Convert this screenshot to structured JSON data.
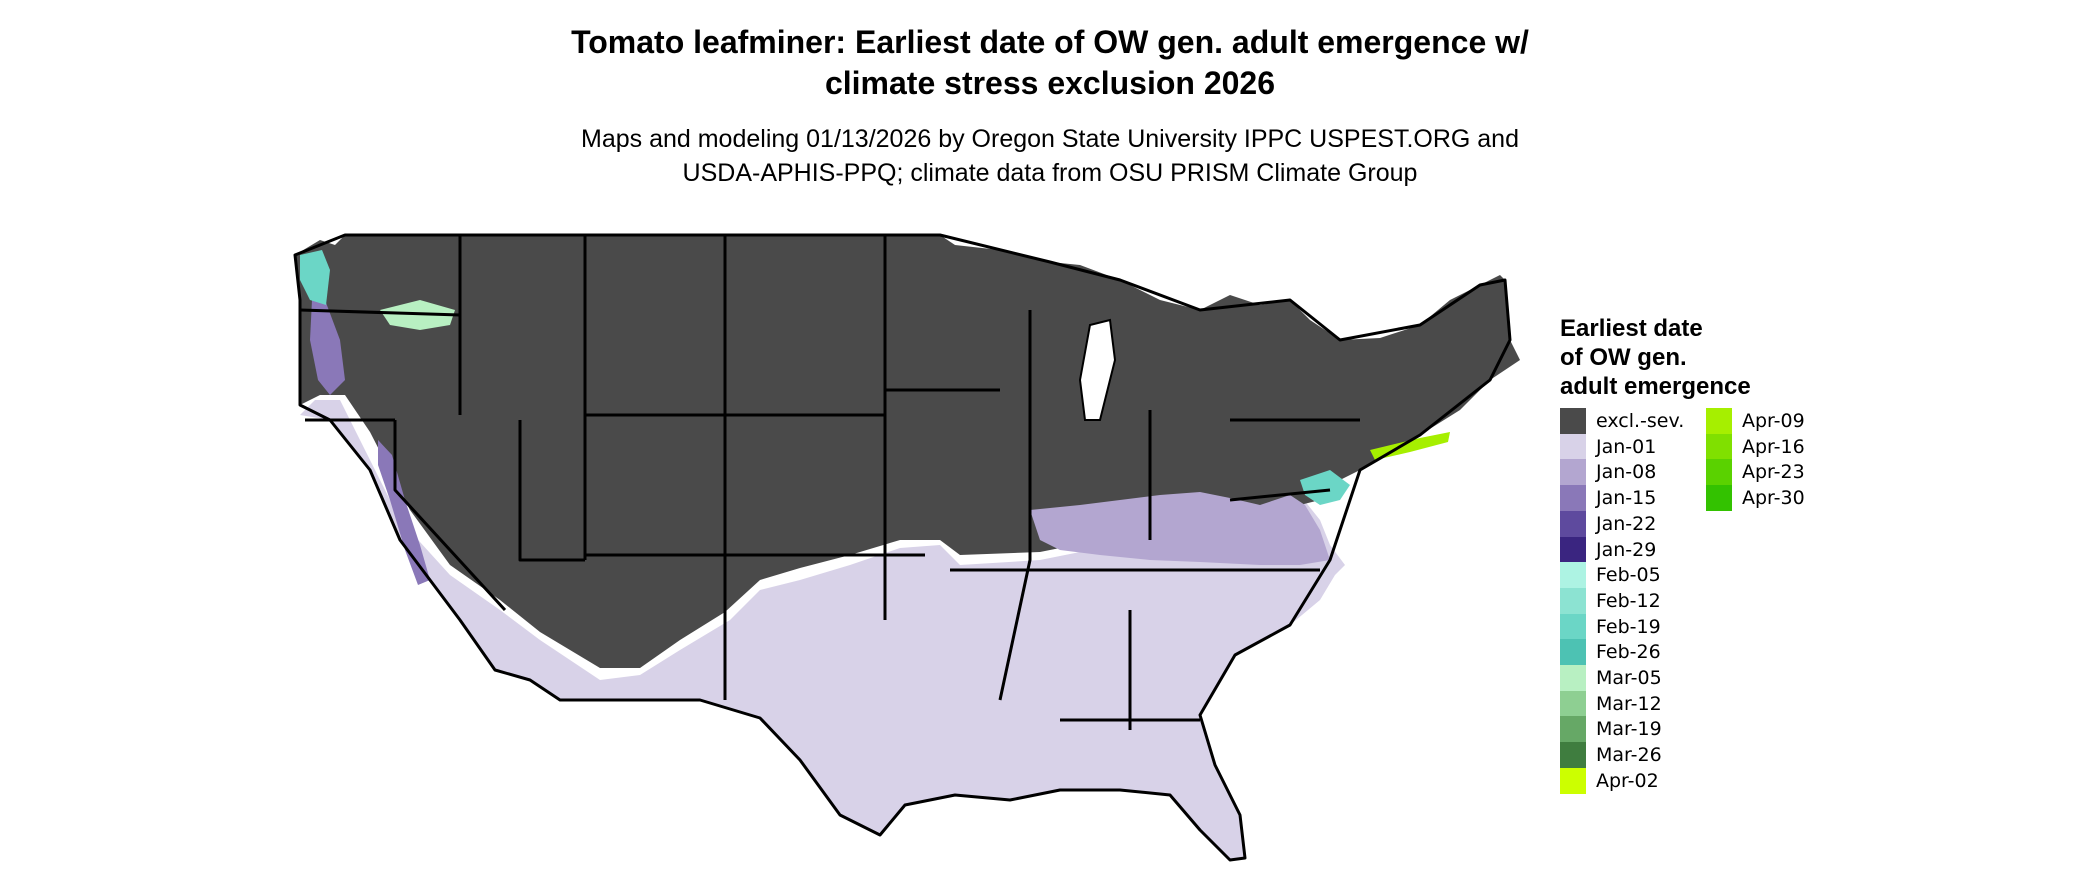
{
  "title_line1": "Tomato leafminer: Earliest date of OW gen. adult emergence w/",
  "title_line2": "climate stress exclusion 2026",
  "subtitle_line1": "Maps and modeling 01/13/2026 by Oregon State University IPPC USPEST.ORG and",
  "subtitle_line2": "USDA-APHIS-PPQ; climate data from OSU PRISM Climate Group",
  "legend": {
    "title_line1": "Earliest date",
    "title_line2": "of OW gen.",
    "title_line3": "adult emergence",
    "items": [
      {
        "label": "excl.-sev.",
        "color": "#4a4a4a"
      },
      {
        "label": "Jan-01",
        "color": "#d8d2e8"
      },
      {
        "label": "Jan-08",
        "color": "#b3a6d0"
      },
      {
        "label": "Jan-15",
        "color": "#8a78b8"
      },
      {
        "label": "Jan-22",
        "color": "#5e4a9e"
      },
      {
        "label": "Jan-29",
        "color": "#3a2580"
      },
      {
        "label": "Feb-05",
        "color": "#adf3e3"
      },
      {
        "label": "Feb-12",
        "color": "#8ce3d2"
      },
      {
        "label": "Feb-19",
        "color": "#6bd6c6"
      },
      {
        "label": "Feb-26",
        "color": "#4dc2b3"
      },
      {
        "label": "Mar-05",
        "color": "#b8f0c2"
      },
      {
        "label": "Mar-12",
        "color": "#8ecf92"
      },
      {
        "label": "Mar-19",
        "color": "#66a866"
      },
      {
        "label": "Mar-26",
        "color": "#3f7d3f"
      },
      {
        "label": "Apr-02",
        "color": "#ccff00"
      },
      {
        "label": "Apr-09",
        "color": "#a6ef00"
      },
      {
        "label": "Apr-16",
        "color": "#80e000"
      },
      {
        "label": "Apr-23",
        "color": "#5ad200"
      },
      {
        "label": "Apr-30",
        "color": "#33c200"
      }
    ]
  },
  "map_colors": {
    "excluded": "#4a4a4a",
    "jan01": "#d8d2e8",
    "jan08": "#b3a6d0",
    "jan15": "#8a78b8",
    "feb19": "#6bd6c6",
    "mar05": "#b8f0c2",
    "apr09": "#a6ef00",
    "border": "#000000"
  }
}
